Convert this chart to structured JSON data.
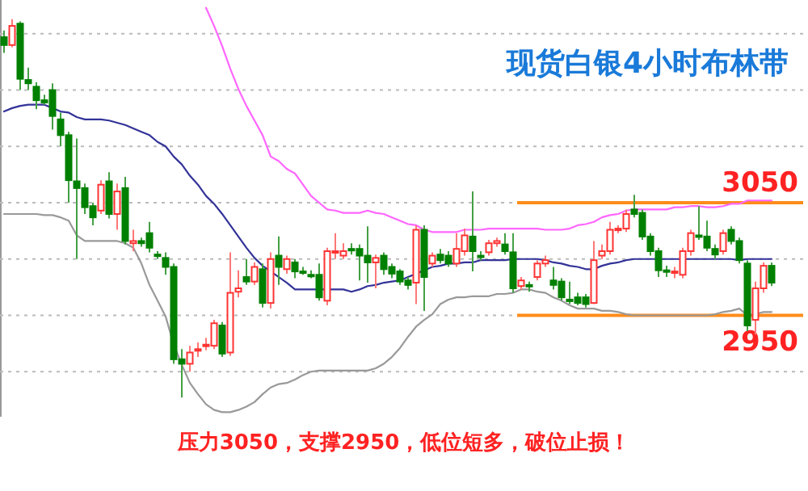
{
  "chart_data": {
    "type": "candlestick",
    "title": "现货白银4小时布林带",
    "categories": [
      null,
      null,
      null,
      null,
      null,
      null,
      null,
      null,
      null,
      null,
      null,
      null,
      null,
      null,
      null,
      null,
      null,
      null,
      null,
      null,
      null,
      null,
      null,
      null,
      null,
      null,
      null,
      null,
      null,
      null,
      null,
      null,
      null,
      null,
      null,
      null,
      null,
      null,
      null,
      null,
      null,
      null,
      null,
      null,
      null,
      null,
      null,
      null,
      null,
      null,
      null,
      null,
      null,
      null,
      null,
      null,
      null,
      null,
      null,
      null,
      null,
      null,
      null,
      null,
      null,
      null,
      null,
      null,
      null,
      null,
      null,
      null,
      null,
      null,
      null,
      null,
      null,
      null,
      null,
      null,
      null,
      null,
      null,
      null,
      null,
      null,
      null,
      null,
      null,
      null,
      null,
      null,
      null,
      null,
      null,
      null
    ],
    "ohlc": [
      [
        3197,
        3203,
        3183,
        3190
      ],
      [
        3190,
        3213,
        3188,
        3207
      ],
      [
        3209,
        3211,
        3150,
        3160
      ],
      [
        3159,
        3170,
        3150,
        3156
      ],
      [
        3153,
        3157,
        3133,
        3141
      ],
      [
        3141,
        3146,
        3137,
        3139
      ],
      [
        3150,
        3156,
        3115,
        3127
      ],
      [
        3124,
        3130,
        3100,
        3110
      ],
      [
        3110,
        3113,
        3050,
        3070
      ],
      [
        3069,
        3107,
        3000,
        3063
      ],
      [
        3063,
        3067,
        3040,
        3046
      ],
      [
        3047,
        3050,
        3030,
        3037
      ],
      [
        3043,
        3070,
        3040,
        3066
      ],
      [
        3069,
        3077,
        3036,
        3040
      ],
      [
        3040,
        3067,
        3026,
        3060
      ],
      [
        3063,
        3073,
        3013,
        3016
      ],
      [
        3014,
        3026,
        3007,
        3016
      ],
      [
        3016,
        3019,
        3011,
        3014
      ],
      [
        3023,
        3033,
        3006,
        3010
      ],
      [
        3004,
        3007,
        3000,
        3003
      ],
      [
        3001,
        3006,
        2986,
        2993
      ],
      [
        2993,
        2996,
        2907,
        2911
      ],
      [
        2911,
        2920,
        2877,
        2907
      ],
      [
        2907,
        2923,
        2900,
        2917
      ],
      [
        2919,
        2926,
        2913,
        2920
      ],
      [
        2923,
        2930,
        2919,
        2924
      ],
      [
        2923,
        2946,
        2920,
        2943
      ],
      [
        2941,
        2944,
        2913,
        2916
      ],
      [
        2917,
        3006,
        2914,
        2970
      ],
      [
        2971,
        2990,
        2966,
        2974
      ],
      [
        2984,
        3000,
        2977,
        2980
      ],
      [
        2980,
        2997,
        2977,
        2993
      ],
      [
        2991,
        2996,
        2957,
        2961
      ],
      [
        2961,
        3006,
        2956,
        3000
      ],
      [
        3003,
        3020,
        2977,
        2993
      ],
      [
        2991,
        3003,
        2987,
        3000
      ],
      [
        2997,
        3000,
        2983,
        2989
      ],
      [
        2989,
        2993,
        2986,
        2988
      ],
      [
        2986,
        2990,
        2983,
        2985
      ],
      [
        2986,
        2996,
        2963,
        2966
      ],
      [
        2963,
        3010,
        2959,
        3007
      ],
      [
        3006,
        3023,
        3000,
        3007
      ],
      [
        3003,
        3014,
        3000,
        3007
      ],
      [
        3009,
        3014,
        3004,
        3008
      ],
      [
        3009,
        3013,
        2981,
        3003
      ],
      [
        3003,
        3029,
        2979,
        2997
      ],
      [
        2997,
        3004,
        2974,
        3001
      ],
      [
        3003,
        3006,
        2986,
        2991
      ],
      [
        2993,
        2996,
        2983,
        2987
      ],
      [
        2989,
        2991,
        2977,
        2980
      ],
      [
        2981,
        2984,
        2973,
        2977
      ],
      [
        2979,
        3030,
        2960,
        3026
      ],
      [
        3026,
        3030,
        2954,
        2984
      ],
      [
        2996,
        3006,
        2993,
        3003
      ],
      [
        3004,
        3009,
        2996,
        2999
      ],
      [
        3003,
        3007,
        2993,
        2996
      ],
      [
        2996,
        3023,
        2993,
        3009
      ],
      [
        3007,
        3027,
        3003,
        3021
      ],
      [
        3020,
        3060,
        2989,
        3007
      ],
      [
        3003,
        3007,
        2999,
        3002
      ],
      [
        3006,
        3017,
        3003,
        3014
      ],
      [
        3014,
        3019,
        3011,
        3016
      ],
      [
        3013,
        3023,
        3004,
        3007
      ],
      [
        3006,
        3023,
        2970,
        2974
      ],
      [
        2976,
        2984,
        2973,
        2981
      ],
      [
        2977,
        2980,
        2971,
        2976
      ],
      [
        2984,
        2999,
        2981,
        2996
      ],
      [
        2996,
        3003,
        2993,
        2999
      ],
      [
        2981,
        2993,
        2973,
        2977
      ],
      [
        2980,
        2983,
        2963,
        2966
      ],
      [
        2964,
        2980,
        2960,
        2963
      ],
      [
        2966,
        2970,
        2959,
        2961
      ],
      [
        2966,
        2969,
        2957,
        2960
      ],
      [
        2961,
        3016,
        2960,
        2999
      ],
      [
        3003,
        3013,
        3000,
        3007
      ],
      [
        3007,
        3033,
        3004,
        3026
      ],
      [
        3026,
        3030,
        3023,
        3027
      ],
      [
        3027,
        3044,
        3024,
        3040
      ],
      [
        3044,
        3057,
        3037,
        3040
      ],
      [
        3041,
        3044,
        3017,
        3020
      ],
      [
        3020,
        3023,
        3003,
        3007
      ],
      [
        3007,
        3010,
        2984,
        2990
      ],
      [
        2990,
        2994,
        2984,
        2989
      ],
      [
        2988,
        2993,
        2983,
        2989
      ],
      [
        2986,
        3010,
        2983,
        3007
      ],
      [
        3007,
        3026,
        3003,
        3023
      ],
      [
        3021,
        3047,
        3017,
        3020
      ],
      [
        3020,
        3034,
        3007,
        3010
      ],
      [
        3009,
        3013,
        3000,
        3004
      ],
      [
        3007,
        3026,
        3004,
        3023
      ],
      [
        3026,
        3029,
        3013,
        3016
      ],
      [
        3016,
        3019,
        2996,
        2999
      ],
      [
        2996,
        2999,
        2936,
        2941
      ],
      [
        2946,
        2980,
        2933,
        2974
      ],
      [
        2974,
        2997,
        2970,
        2994
      ],
      [
        2994,
        2997,
        2976,
        2979
      ]
    ],
    "series": [
      {
        "type": "line",
        "color": "#ff66ff",
        "values": [
          null,
          null,
          null,
          null,
          null,
          null,
          null,
          null,
          null,
          null,
          null,
          null,
          null,
          null,
          null,
          null,
          null,
          null,
          null,
          null,
          null,
          null,
          null,
          null,
          null,
          3223,
          3207,
          3189,
          3169,
          3151,
          3136,
          3123,
          3110,
          3091,
          3087,
          3080,
          3076,
          3066,
          3056,
          3050,
          3044,
          3043,
          3041,
          3041,
          3041,
          3043,
          3041,
          3040,
          3037,
          3034,
          3031,
          3030,
          3026,
          3024,
          3024,
          3024,
          3024,
          3026,
          3026,
          3026,
          3027,
          3027,
          3027,
          3027,
          3027,
          3027,
          3027,
          3026,
          3026,
          3026,
          3027,
          3030,
          3031,
          3033,
          3037,
          3039,
          3040,
          3043,
          3044,
          3044,
          3044,
          3044,
          3044,
          3046,
          3046,
          3047,
          3047,
          3046,
          3046,
          3047,
          3049,
          3049,
          3052,
          3052,
          3052,
          3052
        ]
      },
      {
        "type": "line",
        "color": "#333399",
        "values": [
          3131,
          3134,
          3136,
          3137,
          3137,
          3137,
          3134,
          3131,
          3130,
          3126,
          3124,
          3124,
          3124,
          3123,
          3121,
          3119,
          3116,
          3113,
          3110,
          3104,
          3100,
          3091,
          3084,
          3074,
          3066,
          3056,
          3049,
          3040,
          3030,
          3020,
          3010,
          3001,
          2994,
          2989,
          2984,
          2979,
          2973,
          2973,
          2973,
          2973,
          2973,
          2973,
          2973,
          2971,
          2973,
          2976,
          2977,
          2979,
          2980,
          2981,
          2984,
          2987,
          2990,
          2993,
          2994,
          2996,
          2996,
          2997,
          2997,
          2999,
          2999,
          2999,
          2999,
          3000,
          3000,
          3000,
          3000,
          2999,
          2997,
          2996,
          2994,
          2993,
          2991,
          2991,
          2994,
          2996,
          2997,
          2999,
          3000,
          3000,
          3000,
          3000,
          3000,
          3000,
          3000,
          3000,
          3000,
          3000,
          3000,
          3000,
          3000,
          2999,
          3000,
          3000,
          3000,
          3000
        ]
      },
      {
        "type": "line",
        "color": "#999999",
        "values": [
          3040,
          3040,
          3040,
          3040,
          3040,
          3039,
          3039,
          3037,
          3034,
          3021,
          3016,
          3016,
          3016,
          3016,
          3016,
          3014,
          3010,
          2996,
          2977,
          2963,
          2949,
          2924,
          2906,
          2890,
          2880,
          2871,
          2866,
          2864,
          2864,
          2866,
          2869,
          2873,
          2880,
          2886,
          2889,
          2890,
          2893,
          2897,
          2900,
          2901,
          2901,
          2901,
          2901,
          2901,
          2901,
          2901,
          2903,
          2907,
          2913,
          2921,
          2931,
          2940,
          2946,
          2951,
          2960,
          2964,
          2966,
          2966,
          2967,
          2967,
          2967,
          2969,
          2969,
          2970,
          2973,
          2973,
          2971,
          2970,
          2966,
          2963,
          2959,
          2956,
          2956,
          2956,
          2954,
          2954,
          2953,
          2951,
          2950,
          2950,
          2950,
          2950,
          2950,
          2950,
          2950,
          2950,
          2950,
          2950,
          2951,
          2953,
          2954,
          2956,
          2950,
          2951,
          2953,
          2953
        ]
      }
    ],
    "ylim": [
      2860,
      3230
    ],
    "yticks": [
      {
        "value": 2900,
        "label": null
      },
      {
        "value": 2950,
        "label": null
      },
      {
        "value": 3000,
        "label": null
      },
      {
        "value": 3050,
        "label": null
      },
      {
        "value": 3100,
        "label": null
      },
      {
        "value": 3150,
        "label": null
      },
      {
        "value": 3200,
        "label": null
      }
    ],
    "grid": "y",
    "ref_lines": [
      {
        "axis": "y",
        "value": 3050,
        "label": "3050",
        "color": "#ff8c1a"
      },
      {
        "axis": "y",
        "value": 2950,
        "label": "2950",
        "color": "#ff8c1a"
      }
    ],
    "annotations": [
      "压力3050，支撑2950，低位短多，破位止损！"
    ]
  }
}
